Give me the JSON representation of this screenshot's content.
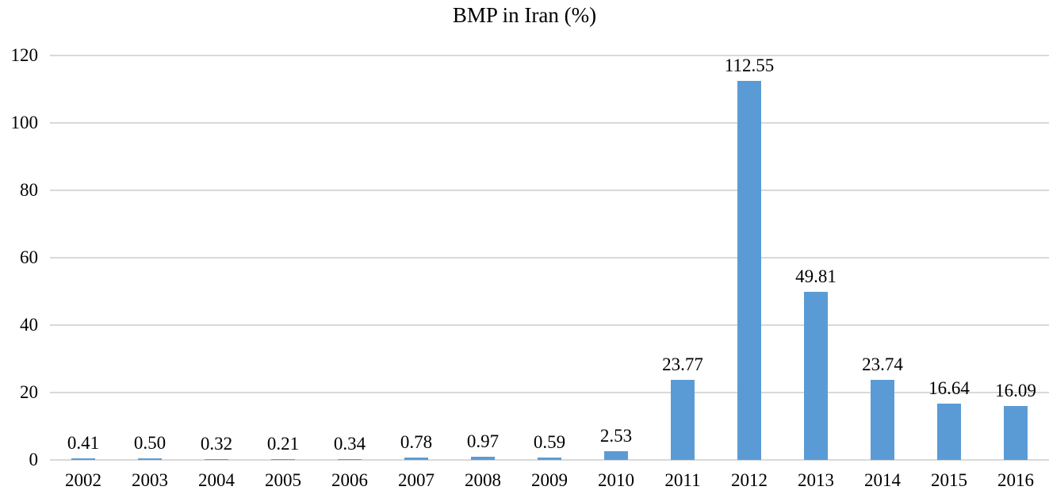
{
  "chart_data": {
    "type": "bar",
    "title": "BMP in Iran (%)",
    "categories": [
      "2002",
      "2003",
      "2004",
      "2005",
      "2006",
      "2007",
      "2008",
      "2009",
      "2010",
      "2011",
      "2012",
      "2013",
      "2014",
      "2015",
      "2016"
    ],
    "values": [
      0.41,
      0.5,
      0.32,
      0.21,
      0.34,
      0.78,
      0.97,
      0.59,
      2.53,
      23.77,
      112.55,
      49.81,
      23.74,
      16.64,
      16.09
    ],
    "value_labels": [
      "0.41",
      "0.50",
      "0.32",
      "0.21",
      "0.34",
      "0.78",
      "0.97",
      "0.59",
      "2.53",
      "23.77",
      "112.55",
      "49.81",
      "23.74",
      "16.64",
      "16.09"
    ],
    "xlabel": "",
    "ylabel": "",
    "ylim": [
      0,
      120
    ],
    "ytick_interval": 20,
    "ytick_labels": [
      "0",
      "20",
      "40",
      "60",
      "80",
      "100",
      "120"
    ],
    "grid": "horizontal",
    "legend": "none",
    "data_label_position": "outside-end",
    "bar_color": "#5B9BD5",
    "gridline_color": "#D9D9D9",
    "text_color": "#000000",
    "background_color": "#FFFFFF"
  }
}
